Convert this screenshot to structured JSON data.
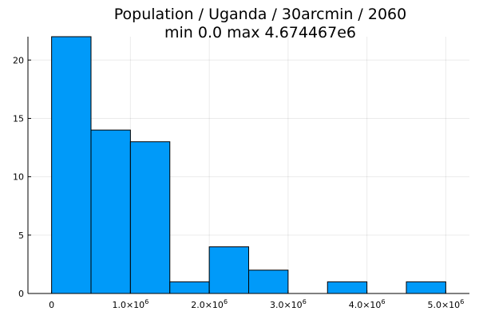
{
  "chart_data": {
    "type": "bar",
    "title": "Population / Uganda / 30arcmin / 2060",
    "subtitle": "min 0.0  max 4.674467e6",
    "xlabel": "",
    "ylabel": "",
    "bin_edges": [
      0,
      500000,
      1000000,
      1500000,
      2000000,
      2500000,
      3000000,
      3500000,
      4000000,
      4500000,
      5000000
    ],
    "values": [
      22,
      14,
      13,
      1,
      4,
      2,
      0,
      1,
      0,
      1
    ],
    "xlim": [
      -300000,
      5300000
    ],
    "ylim": [
      0,
      22
    ],
    "x_ticks": [
      {
        "value": 0,
        "mant": "0",
        "exp": ""
      },
      {
        "value": 1000000,
        "mant": "1.0×10",
        "exp": "6"
      },
      {
        "value": 2000000,
        "mant": "2.0×10",
        "exp": "6"
      },
      {
        "value": 3000000,
        "mant": "3.0×10",
        "exp": "6"
      },
      {
        "value": 4000000,
        "mant": "4.0×10",
        "exp": "6"
      },
      {
        "value": 5000000,
        "mant": "5.0×10",
        "exp": "6"
      }
    ],
    "y_ticks": [
      0,
      5,
      10,
      15,
      20
    ],
    "bar_color": "#009af9",
    "grid": true,
    "legend": "none"
  }
}
